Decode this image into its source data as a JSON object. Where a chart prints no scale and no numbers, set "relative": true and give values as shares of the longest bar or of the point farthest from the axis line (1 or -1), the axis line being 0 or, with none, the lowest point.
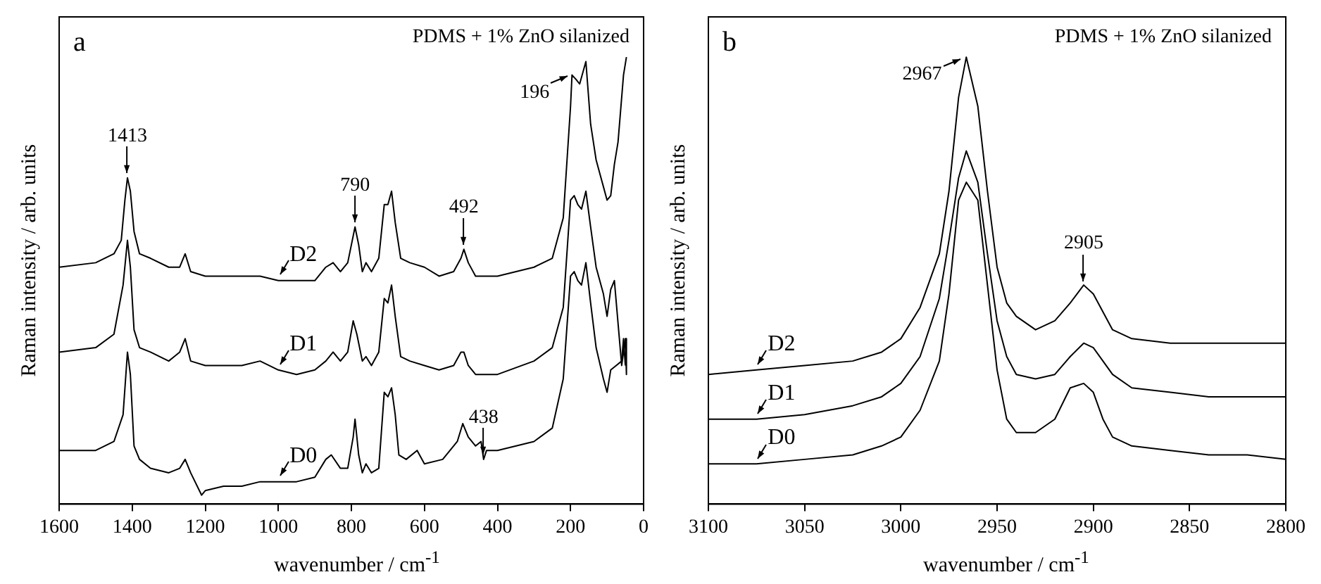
{
  "chart_data": [
    {
      "type": "line",
      "title": "a",
      "xlabel": "wavenumber / cm$^{-1}$",
      "ylabel": "Raman intensity / arb. units",
      "relative": true,
      "legend": "left",
      "grid": false,
      "xlim": [
        1600,
        0
      ],
      "xticks": [
        1600,
        1400,
        1200,
        1000,
        800,
        600,
        400,
        200,
        0
      ],
      "annotations": [
        "PDMS + 1% ZnO silanized",
        {
          "text": "1413",
          "x": 1413,
          "y": 0.73
        },
        {
          "text": "790",
          "x": 790,
          "y": 0.62
        },
        {
          "text": "492",
          "x": 492,
          "y": 0.57
        },
        {
          "text": "196",
          "x": 196,
          "y": 0.96
        },
        {
          "text": "438",
          "x": 438,
          "y": 0.1
        }
      ],
      "series": [
        {
          "name": "D2",
          "color": "#000000",
          "x": [
            1600,
            1500,
            1450,
            1430,
            1420,
            1413,
            1405,
            1395,
            1380,
            1350,
            1300,
            1270,
            1255,
            1240,
            1200,
            1100,
            1050,
            1000,
            950,
            900,
            870,
            850,
            830,
            810,
            790,
            780,
            770,
            760,
            745,
            725,
            710,
            700,
            690,
            680,
            665,
            640,
            600,
            560,
            520,
            500,
            492,
            480,
            460,
            400,
            300,
            250,
            220,
            200,
            196,
            185,
            175,
            158,
            145,
            130,
            110,
            100,
            90,
            80,
            70,
            60,
            55,
            47
          ],
          "values": [
            0.53,
            0.54,
            0.56,
            0.59,
            0.68,
            0.73,
            0.7,
            0.61,
            0.56,
            0.55,
            0.53,
            0.53,
            0.56,
            0.52,
            0.51,
            0.51,
            0.51,
            0.5,
            0.5,
            0.5,
            0.53,
            0.54,
            0.52,
            0.54,
            0.62,
            0.58,
            0.52,
            0.54,
            0.52,
            0.55,
            0.67,
            0.67,
            0.7,
            0.63,
            0.55,
            0.54,
            0.53,
            0.51,
            0.52,
            0.55,
            0.57,
            0.54,
            0.51,
            0.51,
            0.53,
            0.55,
            0.64,
            0.89,
            0.96,
            0.95,
            0.94,
            0.99,
            0.85,
            0.77,
            0.71,
            0.68,
            0.69,
            0.76,
            0.81,
            0.91,
            0.96,
            1.0
          ]
        },
        {
          "name": "D1",
          "color": "#000000",
          "x": [
            1600,
            1500,
            1450,
            1425,
            1413,
            1405,
            1395,
            1380,
            1350,
            1300,
            1270,
            1255,
            1240,
            1200,
            1100,
            1050,
            1000,
            950,
            900,
            870,
            850,
            830,
            810,
            795,
            785,
            770,
            760,
            745,
            725,
            710,
            700,
            690,
            680,
            665,
            640,
            600,
            560,
            520,
            500,
            492,
            480,
            460,
            400,
            300,
            250,
            220,
            200,
            190,
            180,
            170,
            158,
            145,
            130,
            110,
            100,
            90,
            80,
            60,
            50,
            47
          ],
          "values": [
            0.34,
            0.35,
            0.38,
            0.49,
            0.59,
            0.53,
            0.39,
            0.35,
            0.34,
            0.32,
            0.34,
            0.37,
            0.32,
            0.31,
            0.31,
            0.32,
            0.3,
            0.29,
            0.3,
            0.32,
            0.34,
            0.32,
            0.34,
            0.41,
            0.38,
            0.32,
            0.33,
            0.31,
            0.34,
            0.46,
            0.45,
            0.49,
            0.42,
            0.33,
            0.32,
            0.31,
            0.3,
            0.31,
            0.34,
            0.34,
            0.31,
            0.29,
            0.29,
            0.32,
            0.35,
            0.44,
            0.68,
            0.69,
            0.67,
            0.66,
            0.7,
            0.62,
            0.53,
            0.47,
            0.42,
            0.48,
            0.5,
            0.31,
            0.37,
            0.29
          ]
        },
        {
          "name": "D0",
          "color": "#000000",
          "x": [
            1600,
            1500,
            1450,
            1425,
            1413,
            1405,
            1395,
            1380,
            1350,
            1300,
            1270,
            1255,
            1240,
            1210,
            1200,
            1150,
            1100,
            1050,
            1000,
            950,
            900,
            870,
            855,
            830,
            810,
            795,
            790,
            780,
            770,
            760,
            745,
            725,
            710,
            700,
            690,
            680,
            670,
            650,
            620,
            600,
            550,
            510,
            495,
            480,
            460,
            445,
            438,
            430,
            400,
            300,
            250,
            220,
            200,
            190,
            180,
            170,
            158,
            145,
            130,
            110,
            100,
            90,
            75,
            60,
            55,
            50
          ],
          "values": [
            0.12,
            0.12,
            0.14,
            0.2,
            0.34,
            0.29,
            0.13,
            0.1,
            0.08,
            0.07,
            0.08,
            0.1,
            0.07,
            0.02,
            0.03,
            0.04,
            0.04,
            0.05,
            0.05,
            0.05,
            0.06,
            0.1,
            0.11,
            0.08,
            0.08,
            0.15,
            0.19,
            0.11,
            0.07,
            0.09,
            0.07,
            0.08,
            0.25,
            0.24,
            0.26,
            0.2,
            0.11,
            0.1,
            0.12,
            0.09,
            0.1,
            0.14,
            0.18,
            0.15,
            0.13,
            0.14,
            0.1,
            0.12,
            0.12,
            0.14,
            0.17,
            0.28,
            0.51,
            0.52,
            0.5,
            0.49,
            0.54,
            0.45,
            0.35,
            0.28,
            0.25,
            0.3,
            0.31,
            0.32,
            0.37,
            0.31
          ]
        }
      ]
    },
    {
      "type": "line",
      "title": "b",
      "xlabel": "wavenumber / cm$^{-1}$",
      "ylabel": "Raman intensity / arb. units",
      "relative": true,
      "legend": "left",
      "grid": false,
      "xlim": [
        3100,
        2800
      ],
      "xticks": [
        3100,
        3050,
        3000,
        2950,
        2900,
        2850,
        2800
      ],
      "annotations": [
        "PDMS + 1% ZnO silanized",
        {
          "text": "2967",
          "x": 2967,
          "y": 1.0
        },
        {
          "text": "2905",
          "x": 2905,
          "y": 0.49
        }
      ],
      "series": [
        {
          "name": "D2",
          "color": "#000000",
          "x": [
            3100,
            3075,
            3050,
            3025,
            3010,
            3000,
            2990,
            2980,
            2975,
            2970,
            2966,
            2960,
            2955,
            2950,
            2945,
            2940,
            2930,
            2920,
            2912,
            2905,
            2900,
            2895,
            2890,
            2880,
            2860,
            2840,
            2820,
            2800
          ],
          "values": [
            0.29,
            0.3,
            0.31,
            0.32,
            0.34,
            0.37,
            0.44,
            0.56,
            0.7,
            0.91,
            1.0,
            0.89,
            0.7,
            0.53,
            0.45,
            0.42,
            0.39,
            0.41,
            0.45,
            0.49,
            0.47,
            0.43,
            0.39,
            0.37,
            0.36,
            0.36,
            0.36,
            0.36
          ]
        },
        {
          "name": "D1",
          "color": "#000000",
          "x": [
            3100,
            3075,
            3050,
            3025,
            3010,
            3000,
            2990,
            2980,
            2975,
            2970,
            2966,
            2960,
            2955,
            2950,
            2945,
            2940,
            2930,
            2920,
            2912,
            2905,
            2900,
            2895,
            2890,
            2880,
            2860,
            2840,
            2820,
            2800
          ],
          "values": [
            0.19,
            0.19,
            0.2,
            0.22,
            0.24,
            0.27,
            0.33,
            0.46,
            0.59,
            0.73,
            0.79,
            0.72,
            0.56,
            0.41,
            0.33,
            0.29,
            0.28,
            0.29,
            0.33,
            0.36,
            0.35,
            0.32,
            0.29,
            0.26,
            0.25,
            0.24,
            0.24,
            0.24
          ]
        },
        {
          "name": "D0",
          "color": "#000000",
          "x": [
            3100,
            3075,
            3050,
            3025,
            3010,
            3000,
            2990,
            2980,
            2975,
            2970,
            2966,
            2960,
            2955,
            2950,
            2945,
            2940,
            2930,
            2920,
            2912,
            2905,
            2900,
            2895,
            2890,
            2880,
            2860,
            2840,
            2820,
            2800
          ],
          "values": [
            0.09,
            0.09,
            0.1,
            0.11,
            0.13,
            0.15,
            0.21,
            0.32,
            0.47,
            0.68,
            0.72,
            0.68,
            0.49,
            0.3,
            0.19,
            0.16,
            0.16,
            0.19,
            0.26,
            0.27,
            0.25,
            0.19,
            0.15,
            0.13,
            0.12,
            0.11,
            0.11,
            0.1
          ]
        }
      ]
    }
  ]
}
